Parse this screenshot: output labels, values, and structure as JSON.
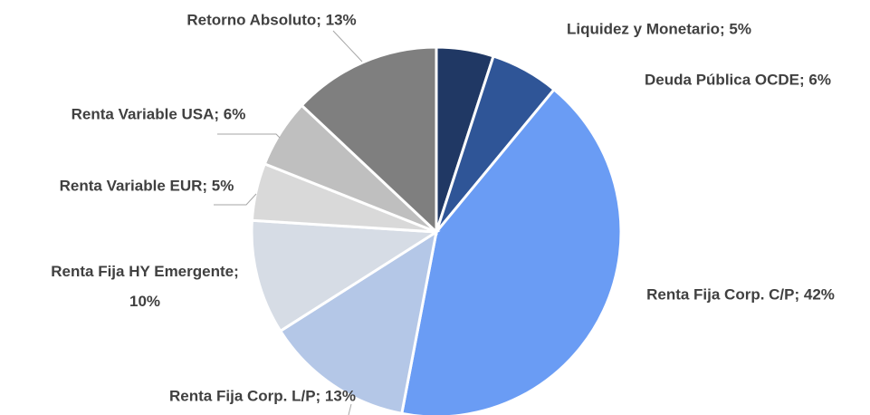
{
  "chart_data": {
    "type": "pie",
    "values": [
      5,
      6,
      42,
      13,
      10,
      5,
      6,
      13
    ],
    "value_labels": [
      "Liquidez y Monetario; 5%",
      "Deuda Pública OCDE; 6%",
      "Renta Fija Corp. C/P; 42%",
      "Renta Fija Corp. L/P; 13%",
      "Renta Fija HY Emergente; 10%",
      "Renta Variable EUR; 5%",
      "Renta Variable USA; 6%",
      "Retorno Absoluto; 13%"
    ],
    "colors": [
      "#203864",
      "#2f5597",
      "#6a9cf4",
      "#b4c7e7",
      "#d6dce5",
      "#d9d9d9",
      "#bfbfbf",
      "#7f7f7f"
    ]
  }
}
